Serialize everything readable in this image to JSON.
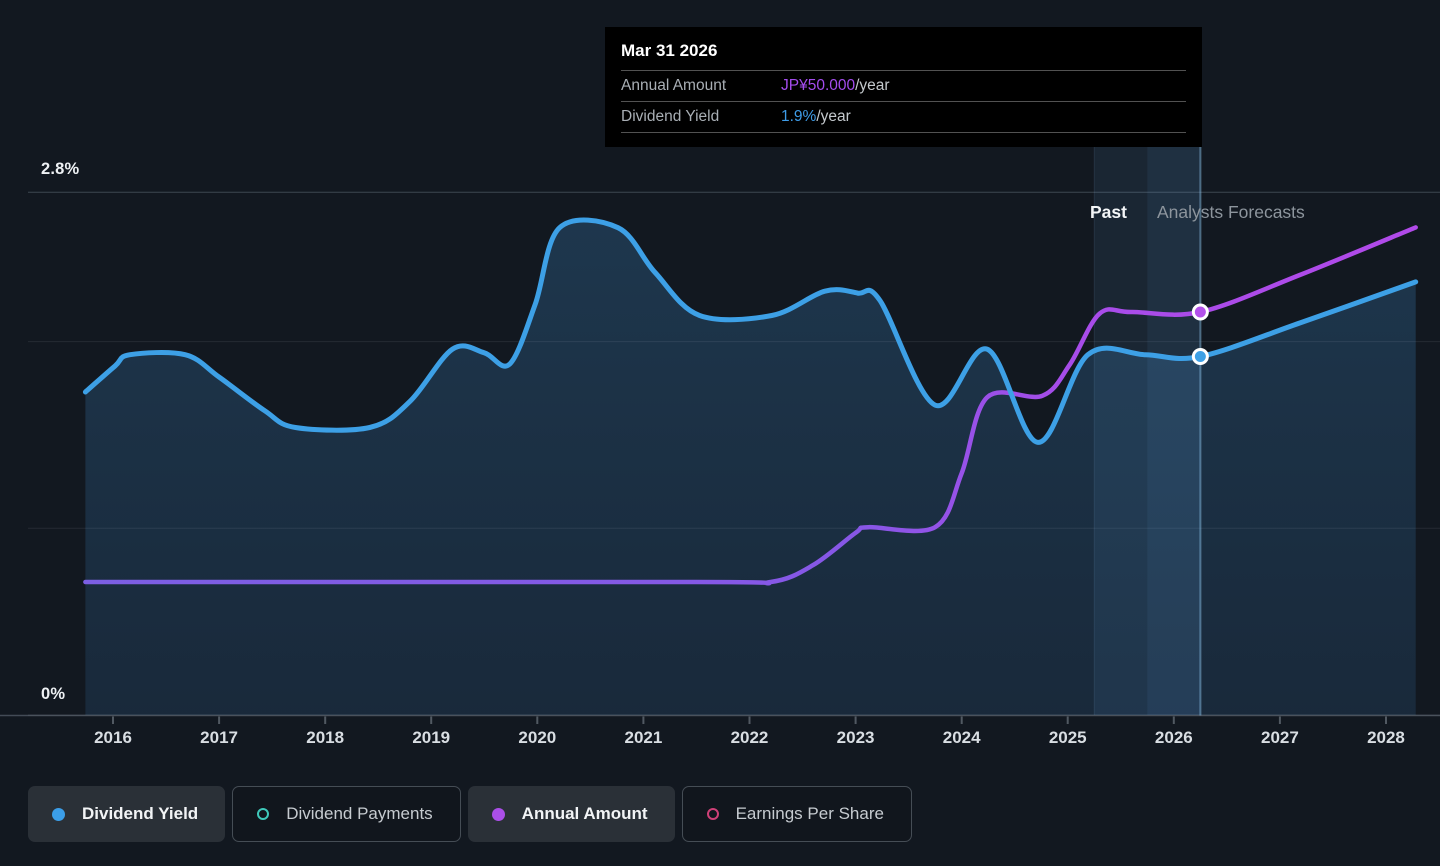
{
  "y_axis": {
    "top_label": "2.8%",
    "bottom_label": "0%"
  },
  "x_axis": {
    "years": [
      "2016",
      "2017",
      "2018",
      "2019",
      "2020",
      "2021",
      "2022",
      "2023",
      "2024",
      "2025",
      "2026",
      "2027",
      "2028"
    ]
  },
  "annotations": {
    "past_label": "Past",
    "forecast_label": "Analysts Forecasts"
  },
  "tooltip": {
    "title": "Mar 31 2026",
    "rows": [
      {
        "label": "Annual Amount",
        "value": "JP¥50.000",
        "suffix": "/year",
        "value_color": "#a44cee"
      },
      {
        "label": "Dividend Yield",
        "value": "1.9%",
        "suffix": "/year",
        "value_color": "#3e9ce8"
      }
    ]
  },
  "legend": [
    {
      "label": "Dividend Yield",
      "marker": "dot",
      "color": "#3b9ee8",
      "active": true
    },
    {
      "label": "Dividend Payments",
      "marker": "ring",
      "color": "#3fc8ba",
      "active": false
    },
    {
      "label": "Annual Amount",
      "marker": "dot",
      "color": "#ab4fe8",
      "active": true
    },
    {
      "label": "Earnings Per Share",
      "marker": "ring",
      "color": "#ce4077",
      "active": false
    }
  ],
  "chart_data": {
    "type": "line",
    "title": "Dividend yield history and forecast",
    "x_range": [
      2015.74,
      2028.28
    ],
    "y_left": {
      "label": "Dividend Yield",
      "unit": "%",
      "min": 0,
      "max": 2.8,
      "gridlines_pct": [
        2.8,
        2,
        1,
        0
      ]
    },
    "y_right_equivalent": {
      "label": "Annual Amount",
      "unit": "JP¥",
      "value_at_top": 65
    },
    "highlight_band": {
      "from": 2025.25,
      "to": 2026.25
    },
    "cursor_x": 2026.25,
    "series": [
      {
        "name": "Dividend Yield",
        "unit": "%",
        "color": "#3da0e6",
        "area": true,
        "points": [
          [
            2015.74,
            1.73
          ],
          [
            2016.02,
            1.87
          ],
          [
            2016.16,
            1.93
          ],
          [
            2016.68,
            1.93
          ],
          [
            2017.0,
            1.81
          ],
          [
            2017.43,
            1.63
          ],
          [
            2017.72,
            1.54
          ],
          [
            2018.42,
            1.54
          ],
          [
            2018.8,
            1.68
          ],
          [
            2019.2,
            1.96
          ],
          [
            2019.5,
            1.94
          ],
          [
            2019.74,
            1.88
          ],
          [
            2019.98,
            2.2
          ],
          [
            2020.21,
            2.61
          ],
          [
            2020.76,
            2.61
          ],
          [
            2021.11,
            2.37
          ],
          [
            2021.53,
            2.14
          ],
          [
            2022.21,
            2.14
          ],
          [
            2022.71,
            2.27
          ],
          [
            2023.02,
            2.26
          ],
          [
            2023.23,
            2.22
          ],
          [
            2023.75,
            1.66
          ],
          [
            2024.24,
            1.96
          ],
          [
            2024.72,
            1.46
          ],
          [
            2025.19,
            1.93
          ],
          [
            2025.73,
            1.93
          ],
          [
            2026.25,
            1.92
          ],
          [
            2027.19,
            2.1
          ],
          [
            2028.28,
            2.32
          ]
        ]
      },
      {
        "name": "Annual Amount",
        "unit": "JP¥",
        "gradient": [
          "#7c5fe3",
          "#8757e6",
          "#a74ce9",
          "#b14ae9"
        ],
        "points": [
          [
            2015.74,
            16.5
          ],
          [
            2021.5,
            16.5
          ],
          [
            2022.2,
            16.5
          ],
          [
            2022.6,
            18.6
          ],
          [
            2023.0,
            22.6
          ],
          [
            2023.12,
            23.3
          ],
          [
            2023.75,
            23.3
          ],
          [
            2024.0,
            30.0
          ],
          [
            2024.24,
            39.4
          ],
          [
            2024.76,
            39.6
          ],
          [
            2025.02,
            43.5
          ],
          [
            2025.3,
            49.8
          ],
          [
            2025.6,
            50.0
          ],
          [
            2026.25,
            50.0
          ],
          [
            2027.19,
            54.6
          ],
          [
            2028.28,
            60.5
          ]
        ]
      }
    ],
    "markers": [
      {
        "series_index": 1,
        "x": 2026.25,
        "value": 50,
        "display": "JP¥50.000/year",
        "color": "#b351ea"
      },
      {
        "series_index": 0,
        "x": 2026.25,
        "value": 1.9,
        "display": "1.9%/year",
        "color": "#3da0e6"
      }
    ]
  },
  "colors": {
    "background": "#121820",
    "dividend_yield_line": "#3da0e6",
    "annual_amount_past": "#7c5fe3",
    "annual_amount_forecast": "#b14ae9",
    "area_fill_top": "rgba(60,135,195,0.28)",
    "area_fill_bottom": "rgba(52,110,165,0.20)",
    "tooltip_background": "#000000"
  }
}
